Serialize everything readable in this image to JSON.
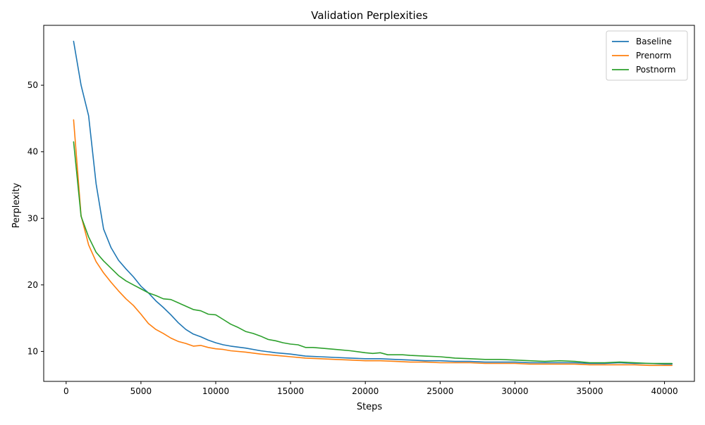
{
  "chart_data": {
    "type": "line",
    "title": "Validation Perplexities",
    "xlabel": "Steps",
    "ylabel": "Perplexity",
    "xlim": [
      -1500,
      42000
    ],
    "ylim": [
      5.5,
      59
    ],
    "xticks": [
      0,
      5000,
      10000,
      15000,
      20000,
      25000,
      30000,
      35000,
      40000
    ],
    "yticks": [
      10,
      20,
      30,
      40,
      50
    ],
    "grid": false,
    "legend_position": "top-right",
    "series": [
      {
        "name": "Baseline",
        "color": "#1f77b4",
        "x": [
          500,
          1000,
          1500,
          2000,
          2500,
          3000,
          3500,
          4000,
          4500,
          5000,
          5500,
          6000,
          6500,
          7000,
          7500,
          8000,
          8500,
          9000,
          9500,
          10000,
          10500,
          11000,
          12000,
          13000,
          14000,
          15000,
          16000,
          17000,
          18000,
          19000,
          20000,
          21000,
          22000,
          23000,
          24000,
          25000,
          26000,
          27000,
          28000,
          29000,
          30000,
          31000,
          32000,
          33000,
          34000,
          35000,
          36000,
          37000,
          38000,
          39000,
          40000,
          40500
        ],
        "y": [
          56.6,
          50.0,
          45.4,
          35.2,
          28.4,
          25.6,
          23.7,
          22.4,
          21.2,
          19.8,
          18.8,
          17.6,
          16.6,
          15.5,
          14.3,
          13.3,
          12.6,
          12.2,
          11.7,
          11.3,
          11.0,
          10.8,
          10.5,
          10.1,
          9.8,
          9.6,
          9.3,
          9.2,
          9.1,
          9.0,
          8.9,
          8.9,
          8.8,
          8.7,
          8.6,
          8.6,
          8.5,
          8.5,
          8.4,
          8.4,
          8.4,
          8.3,
          8.3,
          8.3,
          8.3,
          8.2,
          8.2,
          8.3,
          8.2,
          8.2,
          8.1,
          8.1
        ]
      },
      {
        "name": "Prenorm",
        "color": "#ff7f0e",
        "x": [
          500,
          1000,
          1500,
          2000,
          2500,
          3000,
          3500,
          4000,
          4500,
          5000,
          5500,
          6000,
          6500,
          7000,
          7500,
          8000,
          8500,
          9000,
          9500,
          10000,
          10500,
          11000,
          12000,
          13000,
          14000,
          15000,
          16000,
          17000,
          18000,
          19000,
          20000,
          21000,
          22000,
          23000,
          24000,
          25000,
          26000,
          27000,
          28000,
          29000,
          30000,
          31000,
          32000,
          33000,
          34000,
          35000,
          36000,
          37000,
          38000,
          39000,
          40000,
          40500
        ],
        "y": [
          44.8,
          30.4,
          26.0,
          23.5,
          21.8,
          20.4,
          19.1,
          17.9,
          16.9,
          15.6,
          14.2,
          13.3,
          12.7,
          12.0,
          11.5,
          11.2,
          10.8,
          10.9,
          10.6,
          10.4,
          10.3,
          10.1,
          9.9,
          9.6,
          9.4,
          9.2,
          9.0,
          8.9,
          8.8,
          8.7,
          8.6,
          8.6,
          8.5,
          8.4,
          8.4,
          8.3,
          8.3,
          8.3,
          8.2,
          8.2,
          8.2,
          8.1,
          8.1,
          8.1,
          8.1,
          8.0,
          8.0,
          8.0,
          8.0,
          7.9,
          7.9,
          7.9
        ]
      },
      {
        "name": "Postnorm",
        "color": "#2ca02c",
        "x": [
          500,
          1000,
          1500,
          2000,
          2500,
          3000,
          3500,
          4000,
          4500,
          5000,
          5500,
          6000,
          6500,
          7000,
          7500,
          8000,
          8500,
          9000,
          9500,
          10000,
          10500,
          11000,
          11500,
          12000,
          12500,
          13000,
          13500,
          14000,
          14500,
          15000,
          15500,
          16000,
          16500,
          17000,
          18000,
          19000,
          20000,
          20500,
          21000,
          21500,
          22000,
          22500,
          23000,
          24000,
          25000,
          26000,
          27000,
          28000,
          29000,
          30000,
          31000,
          32000,
          33000,
          34000,
          35000,
          36000,
          37000,
          38000,
          39000,
          40000,
          40500
        ],
        "y": [
          41.5,
          30.3,
          27.2,
          24.9,
          23.6,
          22.5,
          21.4,
          20.6,
          20.0,
          19.4,
          18.8,
          18.4,
          17.9,
          17.8,
          17.3,
          16.8,
          16.3,
          16.1,
          15.6,
          15.5,
          14.8,
          14.1,
          13.6,
          13.0,
          12.7,
          12.3,
          11.8,
          11.6,
          11.3,
          11.1,
          11.0,
          10.6,
          10.6,
          10.5,
          10.3,
          10.1,
          9.8,
          9.7,
          9.8,
          9.5,
          9.5,
          9.5,
          9.4,
          9.3,
          9.2,
          9.0,
          8.9,
          8.8,
          8.8,
          8.7,
          8.6,
          8.5,
          8.6,
          8.5,
          8.3,
          8.3,
          8.4,
          8.3,
          8.2,
          8.2,
          8.2
        ]
      }
    ]
  }
}
